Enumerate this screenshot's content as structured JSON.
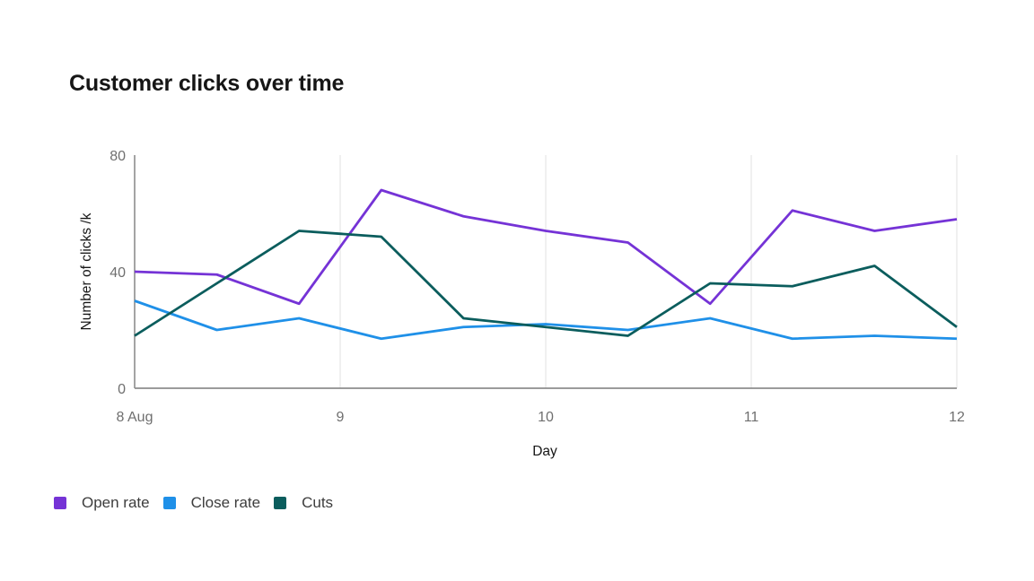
{
  "colors": {
    "background": "#ffffff",
    "title_text": "#161616",
    "axis_title_text": "#161616",
    "tick_text": "#6f6f6f",
    "legend_text": "#3d3d3d",
    "axis_line": "#8d8d8d",
    "gridline": "#e2e2e2"
  },
  "chart_data": {
    "type": "line",
    "title": "Customer clicks over time",
    "xlabel": "Day",
    "ylabel": "Number of clicks /k",
    "xlim": [
      8,
      12
    ],
    "ylim": [
      0,
      80
    ],
    "grid": "vertical-only",
    "legend_position": "bottom-left",
    "x": [
      8.0,
      8.4,
      8.8,
      9.2,
      9.6,
      10.0,
      10.4,
      10.8,
      11.2,
      11.6,
      12.0
    ],
    "x_ticks": [
      {
        "value": 8,
        "label": "8 Aug"
      },
      {
        "value": 9,
        "label": "9"
      },
      {
        "value": 10,
        "label": "10"
      },
      {
        "value": 11,
        "label": "11"
      },
      {
        "value": 12,
        "label": "12"
      }
    ],
    "y_ticks": [
      {
        "value": 0,
        "label": "0"
      },
      {
        "value": 40,
        "label": "40"
      },
      {
        "value": 80,
        "label": "80"
      }
    ],
    "series": [
      {
        "name": "Open rate",
        "color": "#7533d6",
        "values": [
          40,
          39,
          29,
          68,
          59,
          54,
          50,
          29,
          61,
          54,
          58
        ]
      },
      {
        "name": "Close rate",
        "color": "#1f90e8",
        "values": [
          30,
          20,
          24,
          17,
          21,
          22,
          20,
          24,
          17,
          18,
          17
        ]
      },
      {
        "name": "Cuts",
        "color": "#0b5d5d",
        "values": [
          18,
          36,
          54,
          52,
          24,
          21,
          18,
          36,
          35,
          42,
          21
        ]
      }
    ]
  }
}
